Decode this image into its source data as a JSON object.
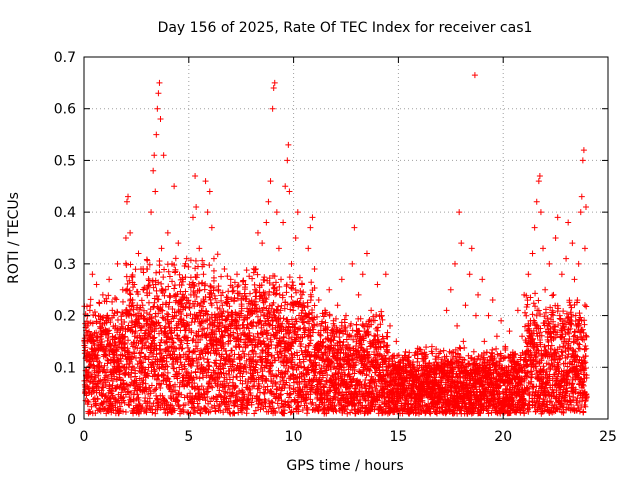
{
  "chart_data": {
    "type": "scatter",
    "title": "Day 156 of 2025, Rate Of TEC Index for receiver cas1",
    "xlabel": "GPS time / hours",
    "ylabel": "ROTI / TECUs",
    "xlim": [
      0,
      25
    ],
    "ylim": [
      0,
      0.7
    ],
    "xticks": [
      0,
      5,
      10,
      15,
      20,
      25
    ],
    "xtick_labels": [
      "0",
      "5",
      "10",
      "15",
      "20",
      "25"
    ],
    "yticks": [
      0,
      0.1,
      0.2,
      0.3,
      0.4,
      0.5,
      0.6,
      0.7
    ],
    "ytick_labels": [
      "0",
      "0.1",
      "0.2",
      "0.3",
      "0.4",
      "0.5",
      "0.6",
      "0.7"
    ],
    "grid": true,
    "marker": "+",
    "series": [
      {
        "name": "ROTI",
        "color": "#ff0000",
        "points": [
          [
            0.05,
            0.05
          ],
          [
            0.1,
            0.12
          ],
          [
            0.15,
            0.18
          ],
          [
            0.2,
            0.08
          ],
          [
            0.3,
            0.22
          ],
          [
            0.35,
            0.15
          ],
          [
            0.4,
            0.28
          ],
          [
            0.5,
            0.1
          ],
          [
            0.55,
            0.2
          ],
          [
            0.6,
            0.26
          ],
          [
            0.7,
            0.06
          ],
          [
            0.8,
            0.17
          ],
          [
            0.9,
            0.24
          ],
          [
            1.0,
            0.09
          ],
          [
            1.05,
            0.19
          ],
          [
            1.1,
            0.14
          ],
          [
            1.2,
            0.27
          ],
          [
            1.3,
            0.05
          ],
          [
            1.35,
            0.21
          ],
          [
            1.4,
            0.11
          ],
          [
            1.5,
            0.18
          ],
          [
            1.6,
            0.3
          ],
          [
            1.7,
            0.08
          ],
          [
            1.8,
            0.16
          ],
          [
            1.85,
            0.25
          ],
          [
            1.9,
            0.1
          ],
          [
            2.0,
            0.35
          ],
          [
            2.05,
            0.42
          ],
          [
            2.1,
            0.43
          ],
          [
            2.15,
            0.2
          ],
          [
            2.2,
            0.36
          ],
          [
            2.3,
            0.12
          ],
          [
            2.4,
            0.26
          ],
          [
            2.5,
            0.07
          ],
          [
            2.6,
            0.32
          ],
          [
            2.7,
            0.15
          ],
          [
            2.8,
            0.22
          ],
          [
            2.9,
            0.09
          ],
          [
            3.0,
            0.29
          ],
          [
            3.1,
            0.18
          ],
          [
            3.2,
            0.4
          ],
          [
            3.3,
            0.48
          ],
          [
            3.35,
            0.51
          ],
          [
            3.4,
            0.44
          ],
          [
            3.45,
            0.55
          ],
          [
            3.5,
            0.6
          ],
          [
            3.55,
            0.63
          ],
          [
            3.6,
            0.65
          ],
          [
            3.65,
            0.58
          ],
          [
            3.7,
            0.33
          ],
          [
            3.8,
            0.51
          ],
          [
            3.9,
            0.25
          ],
          [
            4.0,
            0.36
          ],
          [
            4.1,
            0.14
          ],
          [
            4.2,
            0.3
          ],
          [
            4.3,
            0.45
          ],
          [
            4.4,
            0.2
          ],
          [
            4.5,
            0.34
          ],
          [
            4.6,
            0.11
          ],
          [
            4.7,
            0.27
          ],
          [
            4.8,
            0.18
          ],
          [
            4.9,
            0.31
          ],
          [
            5.0,
            0.08
          ],
          [
            5.1,
            0.24
          ],
          [
            5.2,
            0.39
          ],
          [
            5.3,
            0.47
          ],
          [
            5.35,
            0.41
          ],
          [
            5.4,
            0.2
          ],
          [
            5.5,
            0.33
          ],
          [
            5.6,
            0.13
          ],
          [
            5.7,
            0.28
          ],
          [
            5.8,
            0.46
          ],
          [
            5.9,
            0.4
          ],
          [
            6.0,
            0.44
          ],
          [
            6.1,
            0.37
          ],
          [
            6.2,
            0.31
          ],
          [
            6.3,
            0.17
          ],
          [
            6.4,
            0.25
          ],
          [
            6.5,
            0.09
          ],
          [
            6.6,
            0.22
          ],
          [
            6.7,
            0.29
          ],
          [
            6.8,
            0.12
          ],
          [
            6.9,
            0.2
          ],
          [
            7.0,
            0.27
          ],
          [
            7.1,
            0.07
          ],
          [
            7.2,
            0.18
          ],
          [
            7.3,
            0.28
          ],
          [
            7.4,
            0.14
          ],
          [
            7.5,
            0.23
          ],
          [
            7.6,
            0.1
          ],
          [
            7.7,
            0.26
          ],
          [
            7.8,
            0.16
          ],
          [
            7.9,
            0.06
          ],
          [
            8.0,
            0.21
          ],
          [
            8.1,
            0.13
          ],
          [
            8.2,
            0.29
          ],
          [
            8.3,
            0.36
          ],
          [
            8.4,
            0.19
          ],
          [
            8.5,
            0.34
          ],
          [
            8.6,
            0.24
          ],
          [
            8.7,
            0.38
          ],
          [
            8.8,
            0.42
          ],
          [
            8.9,
            0.46
          ],
          [
            9.0,
            0.6
          ],
          [
            9.05,
            0.64
          ],
          [
            9.1,
            0.65
          ],
          [
            9.2,
            0.4
          ],
          [
            9.3,
            0.33
          ],
          [
            9.4,
            0.27
          ],
          [
            9.5,
            0.38
          ],
          [
            9.6,
            0.45
          ],
          [
            9.7,
            0.5
          ],
          [
            9.75,
            0.53
          ],
          [
            9.8,
            0.44
          ],
          [
            9.9,
            0.3
          ],
          [
            10.0,
            0.22
          ],
          [
            10.1,
            0.35
          ],
          [
            10.2,
            0.4
          ],
          [
            10.3,
            0.15
          ],
          [
            10.4,
            0.26
          ],
          [
            10.5,
            0.1
          ],
          [
            10.6,
            0.2
          ],
          [
            10.7,
            0.33
          ],
          [
            10.8,
            0.37
          ],
          [
            10.9,
            0.39
          ],
          [
            11.0,
            0.29
          ],
          [
            11.1,
            0.12
          ],
          [
            11.2,
            0.23
          ],
          [
            11.3,
            0.18
          ],
          [
            11.4,
            0.08
          ],
          [
            11.5,
            0.21
          ],
          [
            11.6,
            0.14
          ],
          [
            11.7,
            0.25
          ],
          [
            11.8,
            0.11
          ],
          [
            11.9,
            0.19
          ],
          [
            12.0,
            0.07
          ],
          [
            12.1,
            0.22
          ],
          [
            12.2,
            0.15
          ],
          [
            12.3,
            0.27
          ],
          [
            12.4,
            0.1
          ],
          [
            12.5,
            0.2
          ],
          [
            12.6,
            0.06
          ],
          [
            12.7,
            0.18
          ],
          [
            12.8,
            0.3
          ],
          [
            12.9,
            0.37
          ],
          [
            13.0,
            0.13
          ],
          [
            13.1,
            0.24
          ],
          [
            13.2,
            0.09
          ],
          [
            13.3,
            0.28
          ],
          [
            13.4,
            0.17
          ],
          [
            13.5,
            0.32
          ],
          [
            13.6,
            0.12
          ],
          [
            13.7,
            0.21
          ],
          [
            13.8,
            0.05
          ],
          [
            13.9,
            0.16
          ],
          [
            14.0,
            0.26
          ],
          [
            14.1,
            0.1
          ],
          [
            14.2,
            0.2
          ],
          [
            14.3,
            0.14
          ],
          [
            14.4,
            0.28
          ],
          [
            14.5,
            0.07
          ],
          [
            14.6,
            0.18
          ],
          [
            14.7,
            0.12
          ],
          [
            14.8,
            0.08
          ],
          [
            14.9,
            0.15
          ],
          [
            15.0,
            0.05
          ],
          [
            15.1,
            0.1
          ],
          [
            15.2,
            0.07
          ],
          [
            15.3,
            0.12
          ],
          [
            15.4,
            0.04
          ],
          [
            15.5,
            0.09
          ],
          [
            15.6,
            0.06
          ],
          [
            15.7,
            0.11
          ],
          [
            15.8,
            0.08
          ],
          [
            15.9,
            0.13
          ],
          [
            16.0,
            0.05
          ],
          [
            16.1,
            0.1
          ],
          [
            16.2,
            0.07
          ],
          [
            16.3,
            0.12
          ],
          [
            16.4,
            0.06
          ],
          [
            16.5,
            0.09
          ],
          [
            16.6,
            0.14
          ],
          [
            16.7,
            0.05
          ],
          [
            16.8,
            0.11
          ],
          [
            16.9,
            0.07
          ],
          [
            17.0,
            0.13
          ],
          [
            17.1,
            0.06
          ],
          [
            17.2,
            0.1
          ],
          [
            17.3,
            0.21
          ],
          [
            17.4,
            0.08
          ],
          [
            17.5,
            0.25
          ],
          [
            17.6,
            0.12
          ],
          [
            17.7,
            0.3
          ],
          [
            17.8,
            0.18
          ],
          [
            17.9,
            0.4
          ],
          [
            18.0,
            0.34
          ],
          [
            18.1,
            0.15
          ],
          [
            18.2,
            0.22
          ],
          [
            18.3,
            0.09
          ],
          [
            18.4,
            0.28
          ],
          [
            18.5,
            0.33
          ],
          [
            18.6,
            0.13
          ],
          [
            18.65,
            0.665
          ],
          [
            18.7,
            0.2
          ],
          [
            18.8,
            0.24
          ],
          [
            18.9,
            0.1
          ],
          [
            19.0,
            0.27
          ],
          [
            19.1,
            0.15
          ],
          [
            19.2,
            0.08
          ],
          [
            19.3,
            0.2
          ],
          [
            19.4,
            0.12
          ],
          [
            19.5,
            0.23
          ],
          [
            19.6,
            0.06
          ],
          [
            19.7,
            0.16
          ],
          [
            19.8,
            0.1
          ],
          [
            19.9,
            0.19
          ],
          [
            20.0,
            0.07
          ],
          [
            20.1,
            0.14
          ],
          [
            20.2,
            0.09
          ],
          [
            20.3,
            0.17
          ],
          [
            20.4,
            0.05
          ],
          [
            20.5,
            0.12
          ],
          [
            20.6,
            0.08
          ],
          [
            20.7,
            0.21
          ],
          [
            20.8,
            0.1
          ],
          [
            20.9,
            0.16
          ],
          [
            21.0,
            0.24
          ],
          [
            21.1,
            0.13
          ],
          [
            21.2,
            0.28
          ],
          [
            21.3,
            0.19
          ],
          [
            21.4,
            0.32
          ],
          [
            21.5,
            0.37
          ],
          [
            21.6,
            0.42
          ],
          [
            21.7,
            0.46
          ],
          [
            21.75,
            0.47
          ],
          [
            21.8,
            0.4
          ],
          [
            21.9,
            0.33
          ],
          [
            22.0,
            0.25
          ],
          [
            22.1,
            0.18
          ],
          [
            22.2,
            0.3
          ],
          [
            22.3,
            0.12
          ],
          [
            22.4,
            0.24
          ],
          [
            22.5,
            0.35
          ],
          [
            22.6,
            0.39
          ],
          [
            22.7,
            0.2
          ],
          [
            22.8,
            0.28
          ],
          [
            22.9,
            0.15
          ],
          [
            23.0,
            0.31
          ],
          [
            23.1,
            0.38
          ],
          [
            23.2,
            0.22
          ],
          [
            23.3,
            0.34
          ],
          [
            23.4,
            0.27
          ],
          [
            23.5,
            0.18
          ],
          [
            23.6,
            0.3
          ],
          [
            23.7,
            0.4
          ],
          [
            23.75,
            0.43
          ],
          [
            23.8,
            0.5
          ],
          [
            23.85,
            0.52
          ],
          [
            23.9,
            0.33
          ],
          [
            23.95,
            0.41
          ]
        ]
      }
    ],
    "dense_band": {
      "note": "bulk of points forming solid band",
      "color": "#ff0000"
    }
  }
}
